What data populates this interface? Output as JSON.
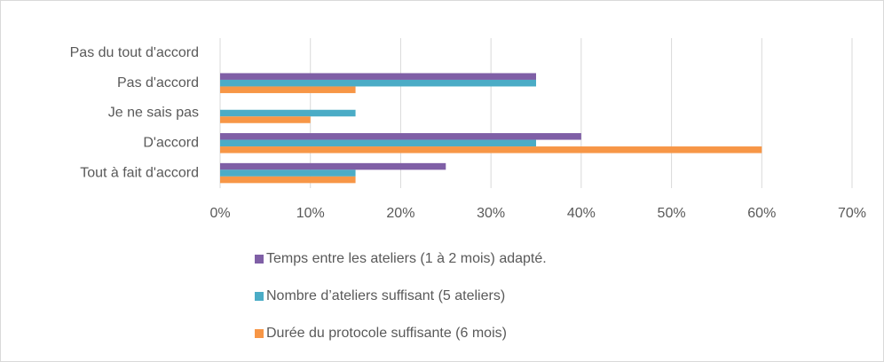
{
  "chart_data": {
    "type": "hbar",
    "categories": [
      "Pas du tout d'accord",
      "Pas d'accord",
      "Je ne sais pas",
      "D'accord",
      "Tout à fait d'accord"
    ],
    "series": [
      {
        "name": "Temps entre les ateliers (1 à 2 mois) adapté.",
        "color": "#7f5fa6",
        "values": [
          0,
          35,
          0,
          40,
          25
        ]
      },
      {
        "name": "Nombre d’ateliers suffisant (5 ateliers)",
        "color": "#4bacc6",
        "values": [
          0,
          35,
          15,
          35,
          15
        ]
      },
      {
        "name": "Durée du protocole suffisante (6 mois)",
        "color": "#f79646",
        "values": [
          0,
          15,
          10,
          60,
          15
        ]
      }
    ],
    "xlim": [
      0,
      70
    ],
    "xticks": [
      {
        "value": 0,
        "label": "0%"
      },
      {
        "value": 10,
        "label": "10%"
      },
      {
        "value": 20,
        "label": "20%"
      },
      {
        "value": 30,
        "label": "30%"
      },
      {
        "value": 40,
        "label": "40%"
      },
      {
        "value": 50,
        "label": "50%"
      },
      {
        "value": 60,
        "label": "60%"
      },
      {
        "value": 70,
        "label": "70%"
      }
    ],
    "grid": true,
    "legend": "bottom"
  }
}
